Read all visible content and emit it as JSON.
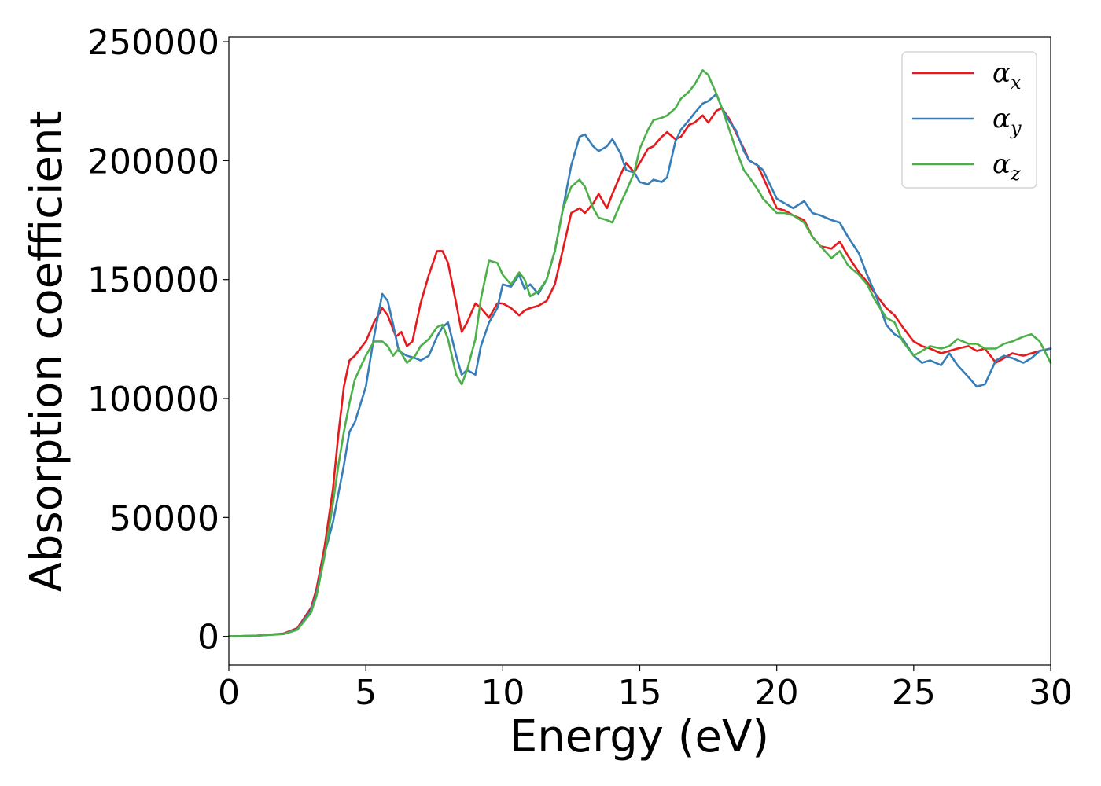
{
  "chart_data": {
    "type": "line",
    "title": "",
    "xlabel": "Energy (eV)",
    "ylabel": "Absorption coefficient",
    "xlim": [
      0,
      30
    ],
    "ylim": [
      -12000,
      252000
    ],
    "xticks": [
      "0",
      "5",
      "10",
      "15",
      "20",
      "25",
      "30"
    ],
    "yticks": [
      "0",
      "50000",
      "100000",
      "150000",
      "200000",
      "250000"
    ],
    "grid": false,
    "legend_position": "top-right",
    "series": [
      {
        "name": "α_x",
        "symbol": "α",
        "subscript": "x",
        "color": "#e41a1c",
        "x": [
          0,
          1,
          2,
          2.5,
          3,
          3.2,
          3.5,
          3.8,
          4,
          4.2,
          4.4,
          4.6,
          5,
          5.3,
          5.6,
          5.8,
          6.1,
          6.3,
          6.5,
          6.7,
          7,
          7.3,
          7.6,
          7.8,
          8,
          8.3,
          8.5,
          8.7,
          9,
          9.2,
          9.5,
          9.8,
          10,
          10.3,
          10.6,
          10.8,
          11,
          11.3,
          11.6,
          11.9,
          12.2,
          12.5,
          12.8,
          13,
          13.3,
          13.5,
          13.8,
          14,
          14.3,
          14.5,
          14.8,
          15,
          15.3,
          15.5,
          15.8,
          16,
          16.3,
          16.5,
          16.8,
          17,
          17.3,
          17.5,
          17.8,
          18,
          18.3,
          18.5,
          18.8,
          19,
          19.3,
          19.5,
          20,
          20.3,
          20.6,
          21,
          21.3,
          21.6,
          22,
          22.3,
          22.6,
          23,
          23.3,
          23.6,
          24,
          24.3,
          24.6,
          25,
          25.3,
          25.6,
          26,
          26.3,
          26.6,
          27,
          27.3,
          27.6,
          28,
          28.3,
          28.6,
          29,
          29.3,
          29.6,
          30
        ],
        "values": [
          0,
          300,
          1200,
          3500,
          12000,
          20000,
          38000,
          62000,
          85000,
          105000,
          116000,
          118000,
          124000,
          132000,
          138000,
          135000,
          126000,
          128000,
          122000,
          124000,
          140000,
          152000,
          162000,
          162000,
          157000,
          140000,
          128000,
          132000,
          140000,
          138000,
          134000,
          140000,
          140000,
          138000,
          135000,
          137000,
          138000,
          139000,
          141000,
          148000,
          163000,
          178000,
          180000,
          178000,
          182000,
          186000,
          180000,
          186000,
          194000,
          199000,
          195000,
          199000,
          205000,
          206000,
          210000,
          212000,
          209000,
          210000,
          215000,
          216000,
          219000,
          216000,
          221000,
          222000,
          217000,
          212000,
          205000,
          200000,
          198000,
          193000,
          180000,
          179000,
          177000,
          175000,
          168000,
          164000,
          163000,
          166000,
          160000,
          153000,
          149000,
          144000,
          138000,
          135000,
          130000,
          124000,
          122000,
          121000,
          119000,
          120000,
          121000,
          122000,
          120000,
          121000,
          115000,
          117000,
          119000,
          118000,
          119000,
          120000,
          121000
        ]
      },
      {
        "name": "α_y",
        "symbol": "α",
        "subscript": "y",
        "color": "#377eb8",
        "x": [
          0,
          1,
          2,
          2.5,
          3,
          3.2,
          3.5,
          3.8,
          4,
          4.2,
          4.4,
          4.6,
          5,
          5.3,
          5.6,
          5.8,
          6,
          6.2,
          6.5,
          6.8,
          7,
          7.3,
          7.6,
          7.8,
          8,
          8.3,
          8.5,
          8.7,
          9,
          9.2,
          9.5,
          9.8,
          10,
          10.3,
          10.6,
          10.8,
          11,
          11.3,
          11.6,
          11.9,
          12.2,
          12.5,
          12.8,
          13,
          13.3,
          13.5,
          13.8,
          14,
          14.3,
          14.5,
          14.8,
          15,
          15.3,
          15.5,
          15.8,
          16,
          16.3,
          16.5,
          16.8,
          17,
          17.3,
          17.5,
          17.8,
          18,
          18.3,
          18.5,
          18.8,
          19,
          19.3,
          19.5,
          20,
          20.3,
          20.6,
          21,
          21.3,
          21.6,
          22,
          22.3,
          22.6,
          23,
          23.3,
          23.6,
          24,
          24.3,
          24.6,
          25,
          25.3,
          25.6,
          26,
          26.3,
          26.6,
          27,
          27.3,
          27.6,
          28,
          28.3,
          28.6,
          29,
          29.3,
          29.6,
          30
        ],
        "values": [
          0,
          300,
          1100,
          3000,
          11000,
          18000,
          35000,
          48000,
          60000,
          72000,
          86000,
          90000,
          105000,
          126000,
          144000,
          141000,
          131000,
          120000,
          118000,
          117000,
          116000,
          118000,
          126000,
          130000,
          132000,
          118000,
          110000,
          112000,
          110000,
          122000,
          132000,
          138000,
          148000,
          147000,
          152000,
          146000,
          148000,
          144000,
          150000,
          162000,
          180000,
          198000,
          210000,
          211000,
          206000,
          204000,
          206000,
          209000,
          203000,
          196000,
          195000,
          191000,
          190000,
          192000,
          191000,
          193000,
          208000,
          213000,
          217000,
          220000,
          224000,
          225000,
          228000,
          222000,
          216000,
          213000,
          204000,
          200000,
          198000,
          196000,
          184000,
          182000,
          180000,
          183000,
          178000,
          177000,
          175000,
          174000,
          168000,
          161000,
          152000,
          144000,
          131000,
          127000,
          125000,
          118000,
          115000,
          116000,
          114000,
          119000,
          114000,
          109000,
          105000,
          106000,
          116000,
          118000,
          117000,
          115000,
          117000,
          120000,
          121000
        ]
      },
      {
        "name": "α_z",
        "symbol": "α",
        "subscript": "z",
        "color": "#4daf4a",
        "x": [
          0,
          1,
          2,
          2.5,
          3,
          3.2,
          3.5,
          3.8,
          4,
          4.2,
          4.4,
          4.6,
          5,
          5.3,
          5.6,
          5.8,
          6,
          6.2,
          6.5,
          6.8,
          7,
          7.3,
          7.6,
          7.8,
          8,
          8.3,
          8.5,
          8.7,
          9,
          9.2,
          9.5,
          9.8,
          10,
          10.3,
          10.6,
          10.8,
          11,
          11.3,
          11.6,
          11.9,
          12.2,
          12.5,
          12.8,
          13,
          13.3,
          13.5,
          13.8,
          14,
          14.3,
          14.5,
          14.8,
          15,
          15.3,
          15.5,
          15.8,
          16,
          16.3,
          16.5,
          16.8,
          17,
          17.3,
          17.5,
          17.8,
          18,
          18.3,
          18.5,
          18.8,
          19,
          19.3,
          19.5,
          20,
          20.3,
          20.6,
          21,
          21.3,
          21.6,
          22,
          22.3,
          22.6,
          23,
          23.3,
          23.6,
          24,
          24.3,
          24.6,
          25,
          25.3,
          25.6,
          26,
          26.3,
          26.6,
          27,
          27.3,
          27.6,
          28,
          28.3,
          28.6,
          29,
          29.3,
          29.6,
          30
        ],
        "values": [
          0,
          300,
          1000,
          2800,
          10000,
          17000,
          34000,
          56000,
          72000,
          86000,
          98000,
          108000,
          118000,
          124000,
          124000,
          122000,
          118000,
          121000,
          115000,
          118000,
          122000,
          125000,
          130000,
          131000,
          125000,
          110000,
          106000,
          112000,
          125000,
          142000,
          158000,
          157000,
          152000,
          148000,
          153000,
          150000,
          143000,
          145000,
          150000,
          162000,
          180000,
          189000,
          192000,
          189000,
          180000,
          176000,
          175000,
          174000,
          182000,
          187000,
          195000,
          205000,
          213000,
          217000,
          218000,
          219000,
          222000,
          226000,
          229000,
          232000,
          238000,
          236000,
          228000,
          222000,
          212000,
          205000,
          196000,
          193000,
          188000,
          184000,
          178000,
          178000,
          177000,
          174000,
          168000,
          164000,
          159000,
          162000,
          156000,
          152000,
          148000,
          141000,
          134000,
          132000,
          124000,
          118000,
          120000,
          122000,
          121000,
          122000,
          125000,
          123000,
          123000,
          121000,
          121000,
          123000,
          124000,
          126000,
          127000,
          124000,
          115000
        ]
      }
    ]
  }
}
